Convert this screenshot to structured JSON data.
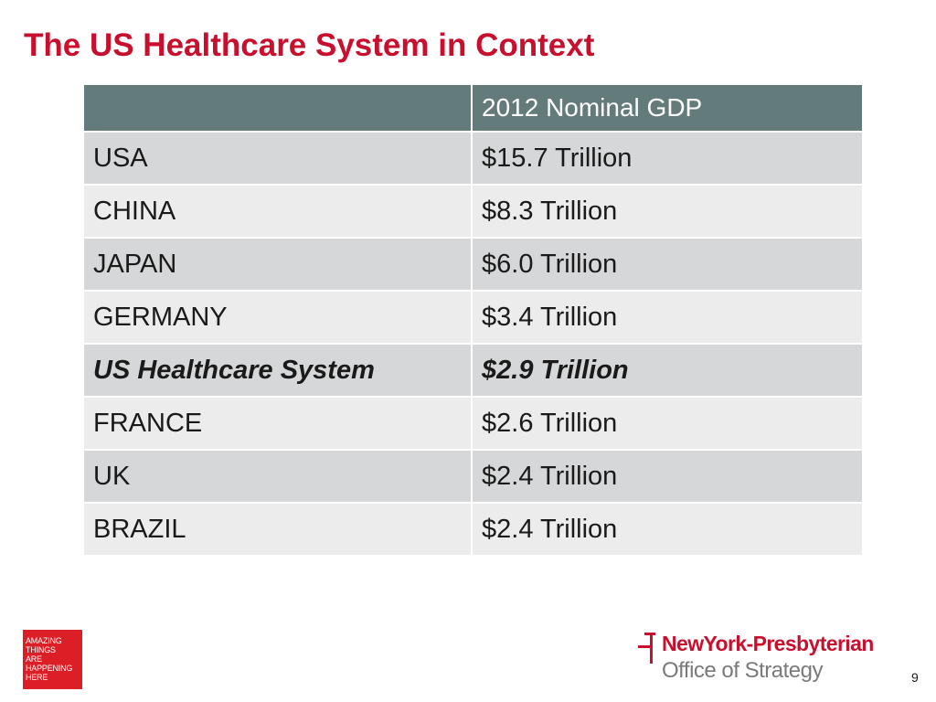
{
  "slide": {
    "title": "The US Healthcare System in Context",
    "page_number": "9"
  },
  "table": {
    "headers": [
      "",
      "2012 Nominal GDP"
    ],
    "rows": [
      {
        "country": "USA",
        "gdp": "$15.7 Trillion",
        "highlight": false
      },
      {
        "country": "CHINA",
        "gdp": "$8.3 Trillion",
        "highlight": false
      },
      {
        "country": "JAPAN",
        "gdp": "$6.0 Trillion",
        "highlight": false
      },
      {
        "country": "GERMANY",
        "gdp": "$3.4 Trillion",
        "highlight": false
      },
      {
        "country": "US Healthcare System",
        "gdp": "$2.9 Trillion",
        "highlight": true
      },
      {
        "country": "FRANCE",
        "gdp": "$2.6 Trillion",
        "highlight": false
      },
      {
        "country": "UK",
        "gdp": "$2.4 Trillion",
        "highlight": false
      },
      {
        "country": "BRAZIL",
        "gdp": "$2.4 Trillion",
        "highlight": false
      }
    ]
  },
  "logos": {
    "amazing": {
      "lines": [
        "AMAZING",
        "THINGS",
        "ARE",
        "HAPPENING",
        "HERE"
      ],
      "color": "#dc1f26"
    },
    "nyp": {
      "name": "NewYork-Presbyterian",
      "department": "Office of Strategy",
      "color": "#c8102e"
    }
  },
  "colors": {
    "title": "#c8102e",
    "header_bg": "#647b7c",
    "row_dark": "#d6d7d8",
    "row_light": "#ececec"
  }
}
